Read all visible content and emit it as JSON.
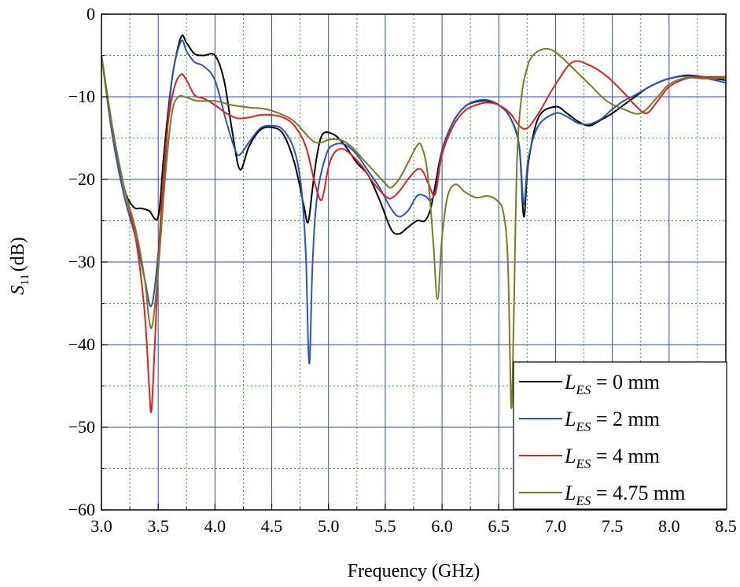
{
  "chart_data": {
    "type": "line",
    "xlabel": "Frequency (GHz)",
    "ylabel_main": "S",
    "ylabel_sub": "11",
    "ylabel_unit": "(dB)",
    "xlim": [
      3.0,
      8.5
    ],
    "ylim": [
      -60,
      0
    ],
    "xticks": [
      3.0,
      3.5,
      4.0,
      4.5,
      5.0,
      5.5,
      6.0,
      6.5,
      7.0,
      7.5,
      8.0,
      8.5
    ],
    "xtick_labels": [
      "3.0",
      "3.5",
      "4.0",
      "4.5",
      "5.0",
      "5.5",
      "6.0",
      "6.5",
      "7.0",
      "7.5",
      "8.0",
      "8.5"
    ],
    "yticks": [
      0,
      -10,
      -20,
      -30,
      -40,
      -50,
      -60
    ],
    "ytick_labels": [
      "0",
      "−10",
      "−20",
      "−30",
      "−40",
      "−50",
      "−60"
    ],
    "major_grid": true,
    "minor_grid": true,
    "major_grid_color": "#2a4fa8",
    "minor_grid_color": "#2aa82a",
    "legend_position": "bottom-right",
    "series": [
      {
        "name_sym": "L",
        "name_sub": "ES",
        "name_eq": " =  0 mm",
        "color": "#000000",
        "x": [
          3.0,
          3.1,
          3.2,
          3.28,
          3.35,
          3.42,
          3.5,
          3.55,
          3.62,
          3.7,
          3.75,
          3.82,
          3.9,
          4.0,
          4.08,
          4.15,
          4.22,
          4.3,
          4.4,
          4.5,
          4.6,
          4.7,
          4.78,
          4.82,
          4.86,
          4.9,
          4.95,
          5.05,
          5.15,
          5.25,
          5.35,
          5.45,
          5.55,
          5.62,
          5.7,
          5.78,
          5.85,
          5.9,
          5.95,
          6.0,
          6.1,
          6.2,
          6.3,
          6.4,
          6.5,
          6.6,
          6.68,
          6.72,
          6.76,
          6.85,
          7.0,
          7.1,
          7.2,
          7.3,
          7.4,
          7.5,
          7.6,
          7.7,
          7.8,
          7.9,
          8.0,
          8.15,
          8.3,
          8.5
        ],
        "y": [
          -5.0,
          -14.0,
          -21.0,
          -23.3,
          -23.5,
          -23.8,
          -24.5,
          -17.0,
          -8.0,
          -2.8,
          -3.5,
          -4.8,
          -5.0,
          -5.0,
          -8.0,
          -14.0,
          -18.8,
          -16.0,
          -14.0,
          -13.7,
          -14.5,
          -18.0,
          -23.0,
          -25.2,
          -21.0,
          -17.0,
          -14.5,
          -14.6,
          -16.0,
          -18.0,
          -19.5,
          -22.5,
          -26.0,
          -26.6,
          -25.8,
          -25.0,
          -25.0,
          -23.5,
          -20.0,
          -16.5,
          -13.0,
          -11.2,
          -10.6,
          -10.5,
          -11.0,
          -12.5,
          -16.0,
          -24.5,
          -18.0,
          -12.5,
          -11.2,
          -12.0,
          -13.0,
          -13.5,
          -12.8,
          -12.0,
          -11.0,
          -10.0,
          -9.0,
          -8.3,
          -7.8,
          -7.4,
          -7.6,
          -8.0
        ]
      },
      {
        "name_sym": "L",
        "name_sub": "ES",
        "name_eq": " =  2 mm",
        "color": "#2a55b5",
        "x": [
          3.0,
          3.1,
          3.2,
          3.3,
          3.38,
          3.44,
          3.5,
          3.56,
          3.62,
          3.7,
          3.75,
          3.82,
          3.9,
          4.0,
          4.1,
          4.18,
          4.22,
          4.3,
          4.4,
          4.5,
          4.6,
          4.7,
          4.76,
          4.8,
          4.83,
          4.86,
          4.9,
          4.98,
          5.05,
          5.15,
          5.25,
          5.35,
          5.45,
          5.55,
          5.62,
          5.7,
          5.78,
          5.85,
          5.9,
          5.95,
          6.0,
          6.1,
          6.2,
          6.3,
          6.4,
          6.5,
          6.6,
          6.68,
          6.72,
          6.76,
          6.85,
          7.0,
          7.1,
          7.2,
          7.3,
          7.4,
          7.5,
          7.6,
          7.7,
          7.8,
          7.9,
          8.0,
          8.15,
          8.3,
          8.5
        ],
        "y": [
          -5.0,
          -15.0,
          -22.0,
          -27.0,
          -32.0,
          -35.3,
          -29.0,
          -18.0,
          -8.0,
          -3.3,
          -4.5,
          -5.8,
          -6.3,
          -8.0,
          -13.0,
          -16.5,
          -17.0,
          -15.5,
          -13.8,
          -13.5,
          -14.0,
          -16.5,
          -21.0,
          -29.0,
          -42.3,
          -30.0,
          -22.0,
          -17.0,
          -15.8,
          -15.8,
          -17.0,
          -19.0,
          -21.0,
          -23.5,
          -24.5,
          -23.8,
          -22.0,
          -22.0,
          -22.5,
          -21.0,
          -16.5,
          -13.0,
          -11.2,
          -10.5,
          -10.4,
          -11.0,
          -12.5,
          -16.0,
          -23.0,
          -17.5,
          -13.5,
          -12.0,
          -12.4,
          -13.2,
          -13.3,
          -12.7,
          -11.5,
          -10.5,
          -9.8,
          -9.0,
          -8.3,
          -7.8,
          -7.5,
          -7.7,
          -8.3
        ]
      },
      {
        "name_sym": "L",
        "name_sub": "ES",
        "name_eq": " =  4 mm",
        "color": "#e02020",
        "x": [
          3.0,
          3.1,
          3.2,
          3.3,
          3.38,
          3.42,
          3.44,
          3.47,
          3.52,
          3.58,
          3.64,
          3.7,
          3.75,
          3.82,
          3.9,
          4.0,
          4.1,
          4.2,
          4.3,
          4.4,
          4.5,
          4.6,
          4.7,
          4.8,
          4.88,
          4.93,
          4.96,
          5.0,
          5.05,
          5.12,
          5.2,
          5.3,
          5.4,
          5.5,
          5.55,
          5.62,
          5.7,
          5.78,
          5.83,
          5.88,
          5.94,
          6.0,
          6.1,
          6.2,
          6.3,
          6.4,
          6.5,
          6.6,
          6.68,
          6.75,
          6.85,
          7.0,
          7.15,
          7.3,
          7.45,
          7.6,
          7.7,
          7.8,
          7.9,
          8.0,
          8.15,
          8.3,
          8.5
        ],
        "y": [
          -5.0,
          -14.0,
          -21.0,
          -27.0,
          -36.0,
          -45.0,
          -48.0,
          -40.0,
          -25.0,
          -14.0,
          -9.0,
          -7.3,
          -8.0,
          -9.8,
          -10.2,
          -11.0,
          -12.0,
          -12.6,
          -12.5,
          -12.2,
          -12.2,
          -12.5,
          -13.5,
          -16.0,
          -20.5,
          -22.5,
          -21.5,
          -18.5,
          -16.8,
          -16.3,
          -17.0,
          -18.5,
          -20.5,
          -22.0,
          -22.3,
          -21.5,
          -20.0,
          -18.8,
          -19.0,
          -20.5,
          -21.8,
          -17.0,
          -13.5,
          -11.7,
          -11.0,
          -10.7,
          -11.0,
          -12.0,
          -13.5,
          -13.8,
          -12.0,
          -8.5,
          -5.8,
          -6.2,
          -7.5,
          -9.5,
          -11.0,
          -12.0,
          -10.5,
          -8.8,
          -7.8,
          -7.6,
          -7.6
        ]
      },
      {
        "name_sym": "L",
        "name_sub": "ES",
        "name_eq": " =  4.75 mm",
        "color": "#7a7a22",
        "x": [
          3.0,
          3.1,
          3.2,
          3.3,
          3.38,
          3.42,
          3.45,
          3.5,
          3.56,
          3.62,
          3.68,
          3.75,
          3.85,
          4.0,
          4.15,
          4.3,
          4.45,
          4.6,
          4.7,
          4.8,
          4.88,
          4.95,
          5.0,
          5.1,
          5.2,
          5.3,
          5.4,
          5.5,
          5.55,
          5.62,
          5.7,
          5.78,
          5.82,
          5.87,
          5.92,
          5.96,
          6.0,
          6.05,
          6.12,
          6.2,
          6.3,
          6.4,
          6.48,
          6.54,
          6.58,
          6.61,
          6.63,
          6.66,
          6.7,
          6.75,
          6.8,
          6.9,
          7.0,
          7.15,
          7.3,
          7.45,
          7.6,
          7.75,
          7.9,
          8.0,
          8.15,
          8.3,
          8.5
        ],
        "y": [
          -5.0,
          -14.0,
          -21.0,
          -26.0,
          -32.0,
          -37.0,
          -37.5,
          -31.0,
          -20.0,
          -12.0,
          -10.0,
          -10.1,
          -10.5,
          -10.5,
          -11.0,
          -11.3,
          -11.5,
          -12.2,
          -13.0,
          -14.5,
          -15.5,
          -15.5,
          -15.2,
          -15.2,
          -16.0,
          -17.5,
          -19.0,
          -20.5,
          -21.0,
          -20.0,
          -18.0,
          -15.9,
          -16.0,
          -19.0,
          -27.0,
          -34.5,
          -27.0,
          -22.0,
          -20.6,
          -21.5,
          -22.2,
          -22.0,
          -22.5,
          -24.0,
          -30.0,
          -47.5,
          -38.0,
          -18.0,
          -10.0,
          -6.5,
          -5.0,
          -4.2,
          -4.6,
          -6.5,
          -8.5,
          -10.5,
          -11.5,
          -12.0,
          -10.0,
          -8.5,
          -7.7,
          -7.8,
          -7.7
        ]
      }
    ]
  }
}
